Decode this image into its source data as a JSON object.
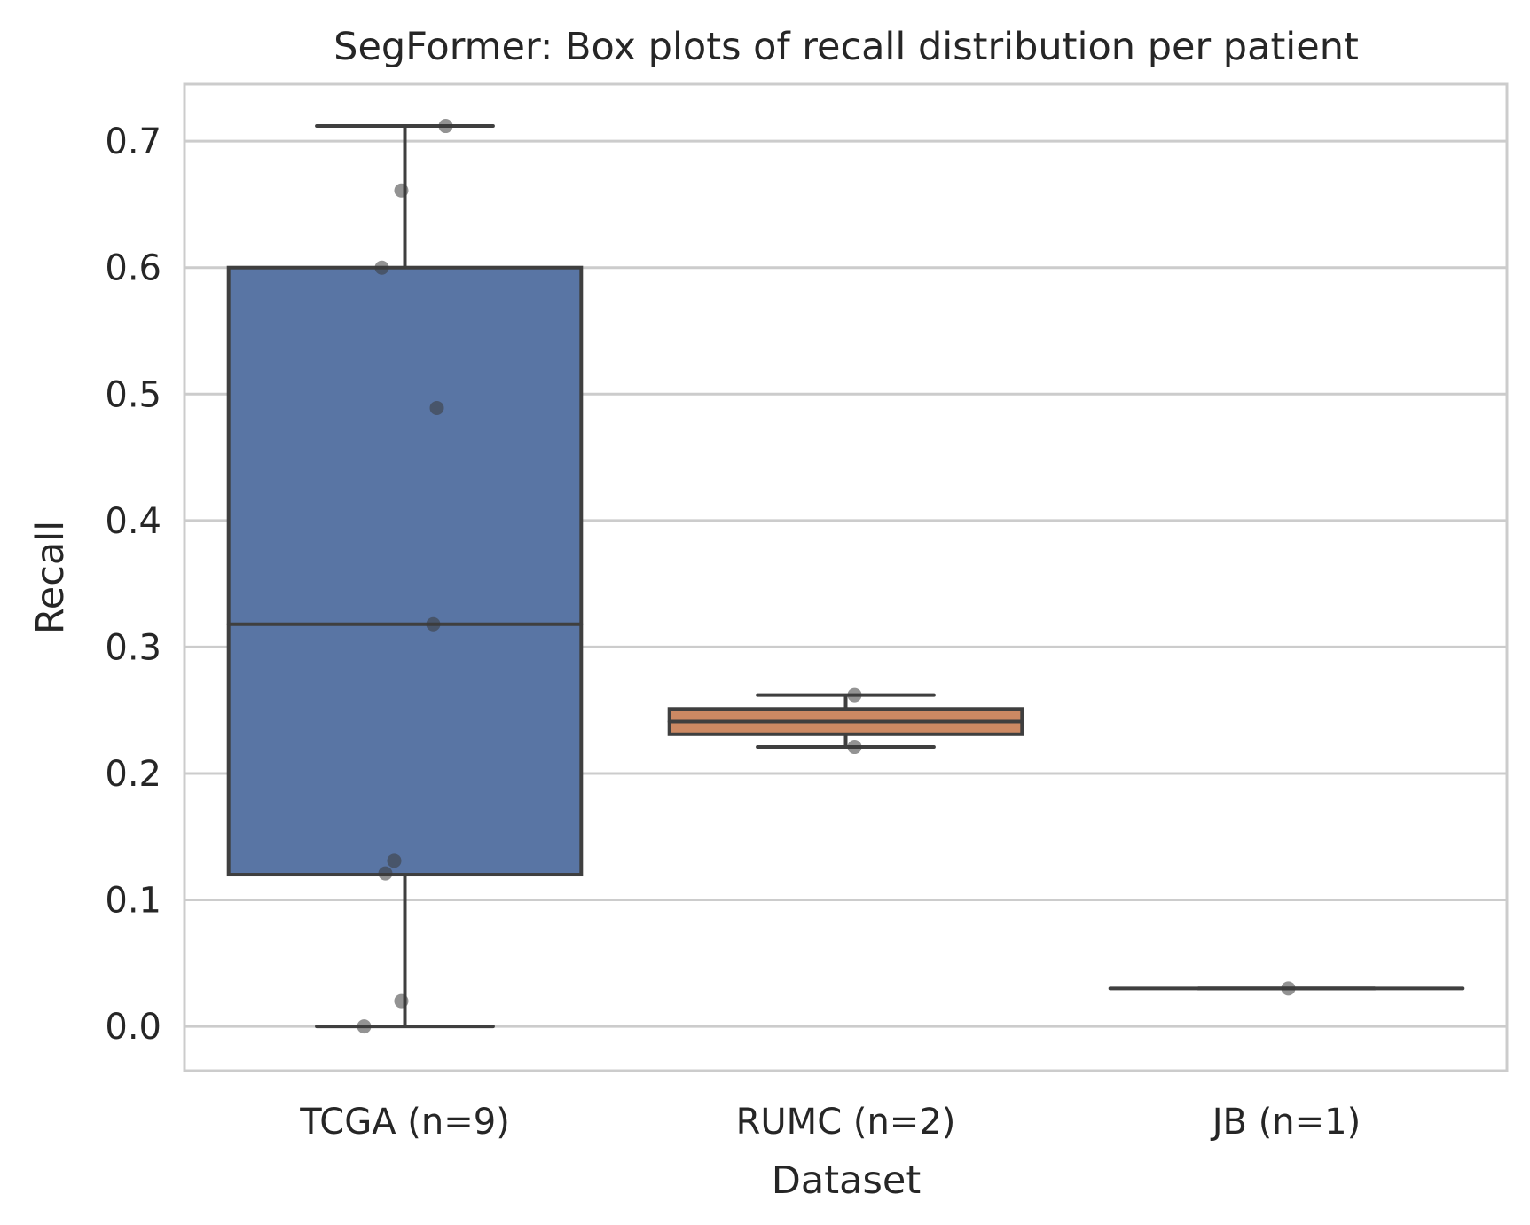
{
  "chart_data": {
    "type": "box",
    "title": "SegFormer: Box plots of recall distribution per patient",
    "xlabel": "Dataset",
    "ylabel": "Recall",
    "ylim": [
      -0.035,
      0.745
    ],
    "yticks": [
      "0.0",
      "0.1",
      "0.2",
      "0.3",
      "0.4",
      "0.5",
      "0.6",
      "0.7"
    ],
    "grid": "horizontal",
    "categories": [
      "TCGA (n=9)",
      "RUMC (n=2)",
      "JB (n=1)"
    ],
    "boxes": [
      {
        "category": "TCGA (n=9)",
        "color": "#5975a4",
        "q1": 0.12,
        "median": 0.318,
        "q3": 0.6,
        "whisker_low": 0.0,
        "whisker_high": 0.712,
        "points": [
          0.712,
          0.661,
          0.6,
          0.489,
          0.318,
          0.131,
          0.121,
          0.02,
          0.0
        ]
      },
      {
        "category": "RUMC (n=2)",
        "color": "#cc8963",
        "q1": 0.231,
        "median": 0.241,
        "q3": 0.251,
        "whisker_low": 0.221,
        "whisker_high": 0.262,
        "points": [
          0.262,
          0.221
        ]
      },
      {
        "category": "JB (n=1)",
        "color": "#5f9e6e",
        "q1": 0.03,
        "median": 0.03,
        "q3": 0.03,
        "whisker_low": 0.03,
        "whisker_high": 0.03,
        "points": [
          0.03
        ]
      }
    ]
  }
}
